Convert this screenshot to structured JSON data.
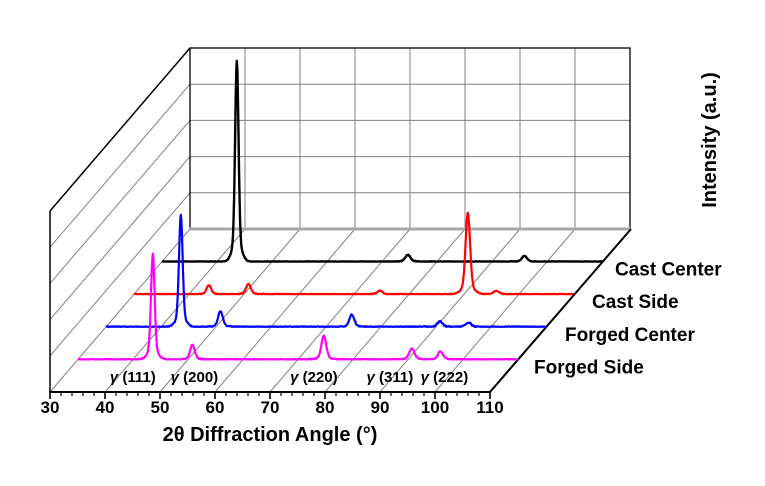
{
  "figure": {
    "background": "#ffffff",
    "grid_color": "#808080",
    "frame_color": "#000000",
    "pane_edge_color": "#a8a8a8"
  },
  "chart_data": {
    "type": "line",
    "variant": "3d-waterfall-xrd",
    "xlabel": "2θ Diffraction Angle (°)",
    "ylabel": "Intensity (a.u.)",
    "xlim": [
      30,
      110
    ],
    "x_major_ticks": [
      30,
      40,
      50,
      60,
      70,
      80,
      90,
      100,
      110
    ],
    "x_minor_step": 2,
    "z_divisions": 5,
    "grid": true,
    "peaks_2theta": [
      43.6,
      50.8,
      74.7,
      90.7,
      95.9
    ],
    "peak_labels": [
      "γ (111)",
      "γ (200)",
      "γ (220)",
      "γ (311)",
      "γ (222)"
    ],
    "series": [
      {
        "name": "Forged Side",
        "color": "#FF00FF",
        "relative_peak_heights": [
          0.52,
          0.072,
          0.116,
          0.055,
          0.039
        ],
        "peak_sigma_deg": [
          0.32,
          0.4,
          0.42,
          0.45,
          0.45
        ]
      },
      {
        "name": "Forged Center",
        "color": "#0000FF",
        "relative_peak_heights": [
          0.55,
          0.077,
          0.061,
          0.028,
          0.022
        ],
        "peak_sigma_deg": [
          0.32,
          0.4,
          0.42,
          0.45,
          0.45
        ]
      },
      {
        "name": "Cast Side",
        "color": "#FF0000",
        "relative_peak_heights": [
          0.044,
          0.05,
          0.017,
          0.4,
          0.017
        ],
        "peak_sigma_deg": [
          0.4,
          0.42,
          0.45,
          0.4,
          0.45
        ]
      },
      {
        "name": "Cast Center",
        "color": "#000000",
        "relative_peak_heights": [
          0.99,
          0.0,
          0.033,
          0.0,
          0.028
        ],
        "peak_sigma_deg": [
          0.3,
          0.4,
          0.45,
          0.45,
          0.45
        ]
      }
    ]
  }
}
